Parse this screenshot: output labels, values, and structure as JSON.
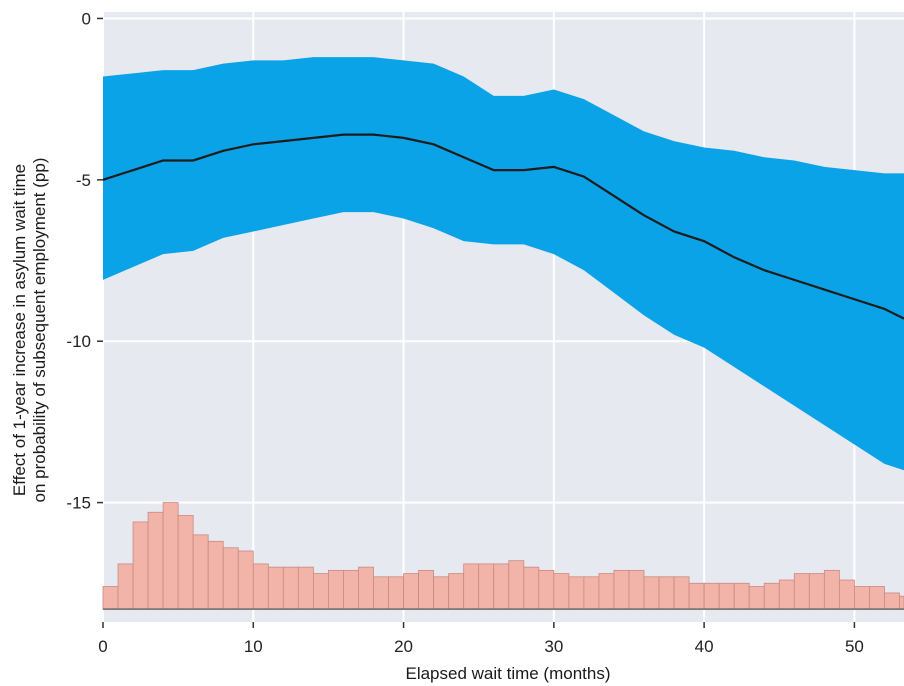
{
  "chart_data": {
    "type": "line",
    "xlabel": "Elapsed wait time (months)",
    "ylabel_line1": "Effect of 1-year increase in asylum wait time",
    "ylabel_line2": "on probability of subsequent employment (pp)",
    "xlim": [
      0,
      53.3
    ],
    "ylim": [
      -18.7,
      0.2
    ],
    "xticks": [
      "0",
      "10",
      "20",
      "30",
      "40",
      "50"
    ],
    "yticks": [
      "0",
      "-5",
      "-10",
      "-15"
    ],
    "grid": true,
    "colors": {
      "panel": "#e6e9f0",
      "grid": "#ffffff",
      "ribbon": "#0aa3e8",
      "line": "#1c1c1c",
      "bars_fill": "#f2b3a8",
      "bars_edge": "#c98a80"
    },
    "series": [
      {
        "x": [
          0,
          2,
          4,
          6,
          8,
          10,
          12,
          14,
          16,
          18,
          20,
          22,
          24,
          26,
          28,
          30,
          32,
          34,
          36,
          38,
          40,
          42,
          44,
          46,
          48,
          50,
          52,
          53.3
        ],
        "estimate": [
          -5.0,
          -4.7,
          -4.4,
          -4.4,
          -4.1,
          -3.9,
          -3.8,
          -3.7,
          -3.6,
          -3.6,
          -3.7,
          -3.9,
          -4.3,
          -4.7,
          -4.7,
          -4.6,
          -4.9,
          -5.5,
          -6.1,
          -6.6,
          -6.9,
          -7.4,
          -7.8,
          -8.1,
          -8.4,
          -8.7,
          -9.0,
          -9.3
        ],
        "ci_upper": [
          -1.8,
          -1.7,
          -1.6,
          -1.6,
          -1.4,
          -1.3,
          -1.3,
          -1.2,
          -1.2,
          -1.2,
          -1.3,
          -1.4,
          -1.8,
          -2.4,
          -2.4,
          -2.2,
          -2.5,
          -3.0,
          -3.5,
          -3.8,
          -4.0,
          -4.1,
          -4.3,
          -4.4,
          -4.6,
          -4.7,
          -4.8,
          -4.8
        ],
        "ci_lower": [
          -8.1,
          -7.7,
          -7.3,
          -7.2,
          -6.8,
          -6.6,
          -6.4,
          -6.2,
          -6.0,
          -6.0,
          -6.2,
          -6.5,
          -6.9,
          -7.0,
          -7.0,
          -7.3,
          -7.8,
          -8.5,
          -9.2,
          -9.8,
          -10.2,
          -10.8,
          -11.4,
          -12.0,
          -12.6,
          -13.2,
          -13.8,
          -14.0
        ]
      }
    ],
    "histogram": {
      "baseline": -18.3,
      "bin_width": 1,
      "bin_start": 0,
      "tops": [
        -17.6,
        -16.9,
        -15.6,
        -15.3,
        -15.0,
        -15.4,
        -16.0,
        -16.2,
        -16.4,
        -16.5,
        -16.9,
        -17.0,
        -17.0,
        -17.0,
        -17.2,
        -17.1,
        -17.1,
        -17.0,
        -17.3,
        -17.3,
        -17.2,
        -17.1,
        -17.3,
        -17.2,
        -16.9,
        -16.9,
        -16.9,
        -16.8,
        -17.0,
        -17.1,
        -17.2,
        -17.3,
        -17.3,
        -17.2,
        -17.1,
        -17.1,
        -17.3,
        -17.3,
        -17.3,
        -17.5,
        -17.5,
        -17.5,
        -17.5,
        -17.6,
        -17.5,
        -17.4,
        -17.2,
        -17.2,
        -17.1,
        -17.4,
        -17.6,
        -17.6,
        -17.8,
        -17.9
      ]
    }
  }
}
